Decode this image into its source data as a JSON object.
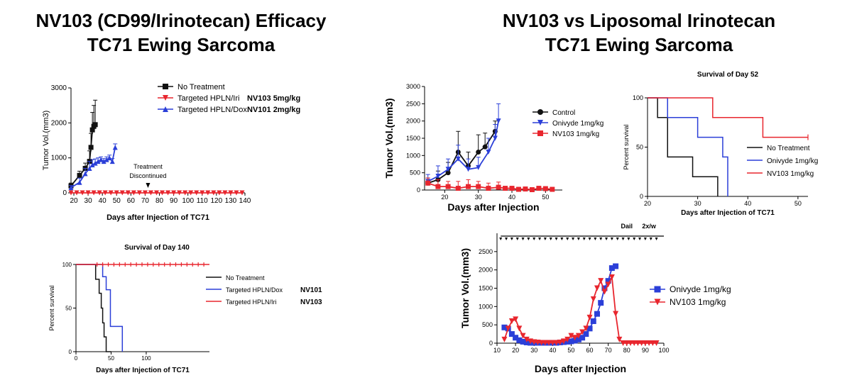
{
  "titles": {
    "left": [
      "NV103 (CD99/Irinotecan) Efficacy",
      "TC71 Ewing Sarcoma"
    ],
    "right": [
      "NV103 vs Liposomal Irinotecan",
      "TC71 Ewing Sarcoma"
    ]
  },
  "colors": {
    "black": "#111111",
    "red": "#e8262e",
    "blue": "#2b3fd8"
  },
  "chart_data": [
    {
      "id": "A",
      "type": "line",
      "xlabel": "Days after Injection of TC71",
      "ylabel": "Tumor Vol.(mm3)",
      "xlim": [
        18,
        140
      ],
      "ylim": [
        0,
        3000
      ],
      "xticks": [
        20,
        30,
        40,
        50,
        60,
        70,
        80,
        90,
        100,
        110,
        120,
        130,
        140
      ],
      "yticks": [
        0,
        1000,
        2000,
        3000
      ],
      "annotation": [
        "Treatment",
        "Discontinued"
      ],
      "annotation_x": 72,
      "legend": [
        {
          "label": "No Treatment",
          "extra": ""
        },
        {
          "label": "Targeted HPLN/Iri",
          "extra": "NV103 5mg/kg"
        },
        {
          "label": "Targeted HPLN/Dox",
          "extra": "NV101 2mg/kg"
        }
      ],
      "series": [
        {
          "name": "No Treatment",
          "color": "black",
          "marker": "square",
          "x": [
            18,
            24,
            28,
            31,
            32,
            33,
            34,
            35
          ],
          "y": [
            200,
            500,
            700,
            900,
            1300,
            1800,
            1900,
            1950
          ],
          "err": [
            80,
            120,
            150,
            300,
            400,
            500,
            600,
            700
          ]
        },
        {
          "name": "Targeted HPLN/Iri",
          "color": "red",
          "marker": "triangle-down",
          "x": [
            18,
            22,
            26,
            30,
            34,
            38,
            42,
            46,
            50,
            54,
            58,
            62,
            66,
            70,
            74,
            78,
            82,
            86,
            90,
            94,
            98,
            102,
            106,
            110,
            114,
            118,
            122,
            126,
            130,
            134,
            138
          ],
          "y": [
            0,
            0,
            0,
            0,
            0,
            0,
            0,
            0,
            0,
            0,
            0,
            0,
            0,
            0,
            0,
            0,
            0,
            0,
            0,
            0,
            0,
            0,
            0,
            0,
            0,
            0,
            0,
            0,
            0,
            0,
            0
          ]
        },
        {
          "name": "Targeted HPLN/Dox",
          "color": "blue",
          "marker": "triangle-up",
          "x": [
            18,
            24,
            28,
            31,
            33,
            35,
            37,
            39,
            41,
            43,
            45,
            47,
            49
          ],
          "y": [
            150,
            300,
            550,
            700,
            800,
            850,
            900,
            950,
            900,
            950,
            1000,
            900,
            1300
          ],
          "err": [
            60,
            120,
            150,
            200,
            150,
            120,
            100,
            80,
            80,
            80,
            80,
            80,
            100
          ]
        }
      ]
    },
    {
      "id": "B",
      "type": "line",
      "title": "Survival of Day 140",
      "xlabel": "Days after Injection of TC71",
      "ylabel": "Percent survival",
      "xlim": [
        0,
        190
      ],
      "ylim": [
        0,
        100
      ],
      "xticks": [
        0,
        50,
        100
      ],
      "yticks": [
        0,
        50,
        100
      ],
      "legend": [
        {
          "label": "No Treatment",
          "extra": ""
        },
        {
          "label": "Targeted HPLN/Dox",
          "extra": "NV101"
        },
        {
          "label": "Targeted HPLN/Iri",
          "extra": "NV103"
        }
      ],
      "series": [
        {
          "name": "No Treatment",
          "color": "black",
          "step": true,
          "x": [
            0,
            28,
            28,
            33,
            33,
            36,
            36,
            38,
            38,
            40,
            40,
            43,
            43,
            50
          ],
          "y": [
            100,
            100,
            83,
            83,
            67,
            67,
            50,
            50,
            33,
            33,
            17,
            17,
            0,
            0
          ]
        },
        {
          "name": "Targeted HPLN/Dox",
          "color": "blue",
          "step": true,
          "x": [
            0,
            38,
            38,
            43,
            43,
            49,
            49,
            66,
            66
          ],
          "y": [
            100,
            100,
            86,
            86,
            71,
            71,
            29,
            29,
            0
          ]
        },
        {
          "name": "Targeted HPLN/Iri",
          "color": "red",
          "step": true,
          "ticks": true,
          "x": [
            0,
            190
          ],
          "y": [
            100,
            100
          ]
        }
      ]
    },
    {
      "id": "C",
      "type": "line",
      "xlabel": "Days after Injection",
      "ylabel": "Tumor Vol.(mm3)",
      "xlim": [
        14,
        55
      ],
      "ylim": [
        0,
        3000
      ],
      "xticks": [
        20,
        30,
        40,
        50
      ],
      "yticks": [
        0,
        500,
        1000,
        1500,
        2000,
        2500,
        3000
      ],
      "legend": [
        {
          "label": "Control",
          "extra": ""
        },
        {
          "label": "Onivyde 1mg/kg",
          "extra": ""
        },
        {
          "label": "NV103 1mg/kg",
          "extra": ""
        }
      ],
      "series": [
        {
          "name": "Control",
          "color": "black",
          "marker": "circle",
          "x": [
            15,
            18,
            21,
            24,
            27,
            30,
            32,
            35
          ],
          "y": [
            200,
            300,
            500,
            1100,
            700,
            1100,
            1250,
            1700
          ],
          "err": [
            150,
            250,
            300,
            600,
            400,
            500,
            400,
            300
          ]
        },
        {
          "name": "Onivyde 1mg/kg",
          "color": "blue",
          "marker": "triangle-down",
          "x": [
            15,
            18,
            21,
            24,
            27,
            30,
            33,
            35,
            36
          ],
          "y": [
            250,
            400,
            600,
            900,
            600,
            650,
            1100,
            1500,
            2000
          ],
          "err": [
            200,
            300,
            300,
            400,
            300,
            300,
            400,
            400,
            500
          ]
        },
        {
          "name": "NV103 1mg/kg",
          "color": "red",
          "marker": "square",
          "x": [
            15,
            18,
            21,
            24,
            27,
            30,
            33,
            36,
            38,
            40,
            42,
            44,
            46,
            48,
            50,
            52
          ],
          "y": [
            200,
            100,
            100,
            50,
            100,
            100,
            50,
            80,
            50,
            50,
            20,
            30,
            10,
            50,
            40,
            20
          ],
          "err": [
            150,
            200,
            150,
            200,
            200,
            150,
            150,
            150,
            0,
            0,
            0,
            0,
            0,
            0,
            0,
            0
          ]
        }
      ]
    },
    {
      "id": "D",
      "type": "line",
      "title": "Survival of Day 52",
      "xlabel": "Days after Injection of TC71",
      "ylabel": "Percent survival",
      "xlim": [
        20,
        52
      ],
      "ylim": [
        0,
        100
      ],
      "xticks": [
        20,
        30,
        40,
        50
      ],
      "yticks": [
        0,
        50,
        100
      ],
      "legend": [
        {
          "label": "No Treatment",
          "extra": ""
        },
        {
          "label": "Onivyde 1mg/kg",
          "extra": ""
        },
        {
          "label": "NV103 1mg/kg",
          "extra": ""
        }
      ],
      "series": [
        {
          "name": "No Treatment",
          "color": "black",
          "step": true,
          "x": [
            20,
            22,
            22,
            24,
            24,
            29,
            29,
            34,
            34
          ],
          "y": [
            100,
            100,
            80,
            80,
            40,
            40,
            20,
            20,
            0
          ]
        },
        {
          "name": "Onivyde 1mg/kg",
          "color": "blue",
          "step": true,
          "x": [
            20,
            24,
            24,
            30,
            30,
            35,
            35,
            36,
            36
          ],
          "y": [
            100,
            100,
            80,
            80,
            60,
            60,
            40,
            40,
            0
          ]
        },
        {
          "name": "NV103 1mg/kg",
          "color": "red",
          "step": true,
          "ticks": true,
          "x": [
            20,
            33,
            33,
            43,
            43,
            52
          ],
          "y": [
            100,
            100,
            80,
            80,
            60,
            60
          ]
        }
      ]
    },
    {
      "id": "E",
      "type": "line",
      "xlabel": "Days after Injection",
      "ylabel": "Tumor Vol.(mm3)",
      "xlim": [
        10,
        100
      ],
      "ylim": [
        0,
        3000
      ],
      "xticks": [
        10,
        20,
        30,
        40,
        50,
        60,
        70,
        80,
        90,
        100
      ],
      "yticks": [
        0,
        500,
        1000,
        1500,
        2000,
        2500
      ],
      "annotations": [
        "Dail",
        "2x/w"
      ],
      "legend": [
        {
          "label": "Onivyde 1mg/kg",
          "extra": ""
        },
        {
          "label": "NV103 1mg/kg",
          "extra": ""
        }
      ],
      "series": [
        {
          "name": "Onivyde 1mg/kg",
          "color": "blue",
          "marker": "square",
          "x": [
            14,
            16,
            18,
            20,
            22,
            24,
            26,
            28,
            30,
            32,
            34,
            36,
            38,
            40,
            42,
            44,
            46,
            48,
            50,
            52,
            54,
            56,
            58,
            60,
            62,
            64,
            66,
            68,
            70,
            72,
            74
          ],
          "y": [
            430,
            400,
            250,
            150,
            80,
            40,
            20,
            10,
            10,
            10,
            10,
            10,
            10,
            10,
            10,
            20,
            30,
            40,
            50,
            70,
            100,
            150,
            250,
            400,
            600,
            800,
            1100,
            1500,
            1700,
            2050,
            2100
          ]
        },
        {
          "name": "NV103 1mg/kg",
          "color": "red",
          "marker": "triangle-down",
          "x": [
            14,
            16,
            18,
            20,
            22,
            24,
            26,
            28,
            30,
            32,
            34,
            36,
            38,
            40,
            42,
            44,
            46,
            48,
            50,
            52,
            54,
            56,
            58,
            60,
            62,
            64,
            66,
            68,
            70,
            72,
            74,
            76,
            78,
            80,
            82,
            84,
            86,
            88,
            90,
            92,
            94,
            96
          ],
          "y": [
            100,
            400,
            600,
            650,
            400,
            200,
            100,
            50,
            30,
            20,
            10,
            10,
            10,
            10,
            10,
            20,
            50,
            100,
            200,
            150,
            200,
            300,
            400,
            700,
            1200,
            1500,
            1700,
            1400,
            1600,
            1800,
            800,
            100,
            0,
            0,
            0,
            0,
            0,
            0,
            0,
            0,
            0,
            0
          ]
        }
      ]
    }
  ]
}
